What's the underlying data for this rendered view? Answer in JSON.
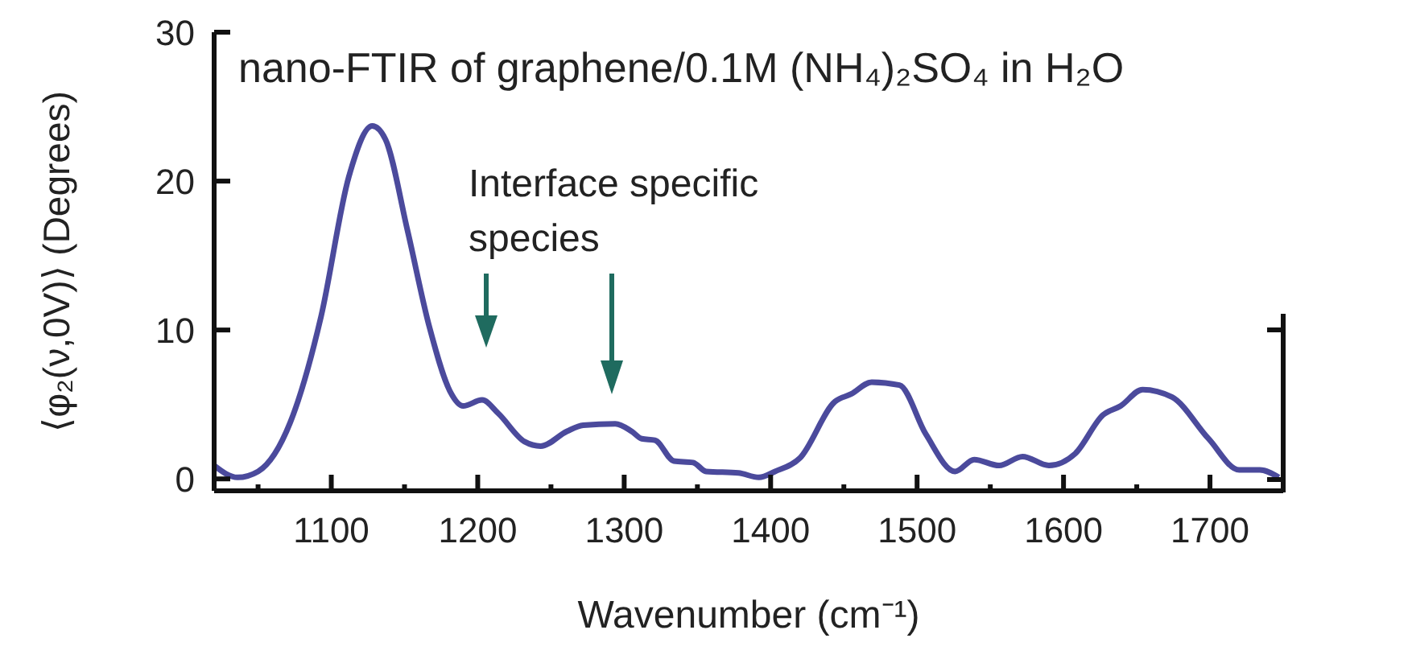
{
  "chart_data": {
    "type": "line",
    "title": "nano-FTIR of graphene/0.1M (NH₄)₂SO₄ in H₂O",
    "xlabel": "Wavenumber (cm⁻¹)",
    "ylabel": "⟨φ₂(ν,0V)⟩ (Degrees)",
    "annotations": [
      "Interface specific species"
    ],
    "xlim": [
      1020,
      1750
    ],
    "ylim": [
      -0.8,
      30
    ],
    "xticks": [
      {
        "value": 1050,
        "label": null
      },
      1100,
      {
        "value": 1150,
        "label": null
      },
      1200,
      {
        "value": 1250,
        "label": null
      },
      1300,
      {
        "value": 1350,
        "label": null
      },
      1400,
      {
        "value": 1450,
        "label": null
      },
      1500,
      {
        "value": 1550,
        "label": null
      },
      1600,
      {
        "value": 1650,
        "label": null
      },
      1700
    ],
    "yticks": [
      0,
      10,
      20,
      30
    ],
    "grid": false,
    "marker": "none",
    "line_style": "solid",
    "series": [
      {
        "color": "#4b4a9c",
        "x": [
          1020,
          1036,
          1050,
          1072,
          1093,
          1112,
          1128,
          1137,
          1152,
          1167,
          1181,
          1190,
          1203,
          1214,
          1232,
          1243,
          1261,
          1272,
          1294,
          1305,
          1312,
          1321,
          1334,
          1347,
          1356,
          1378,
          1392,
          1403,
          1420,
          1444,
          1455,
          1469,
          1488,
          1506,
          1526,
          1539,
          1556,
          1572,
          1590,
          1608,
          1627,
          1639,
          1654,
          1674,
          1699,
          1720,
          1734,
          1747
        ],
        "values": [
          0.9,
          0.1,
          0.5,
          3.8,
          10.9,
          20.3,
          23.7,
          22.8,
          16.7,
          10.2,
          5.9,
          4.9,
          5.3,
          4.4,
          2.5,
          2.2,
          3.2,
          3.6,
          3.7,
          3.2,
          2.7,
          2.6,
          1.2,
          1.1,
          0.5,
          0.4,
          0.1,
          0.5,
          1.4,
          5.2,
          5.7,
          6.5,
          6.3,
          3.0,
          0.5,
          1.3,
          0.9,
          1.5,
          0.9,
          1.7,
          4.3,
          4.9,
          6.0,
          5.5,
          2.7,
          0.6,
          0.6,
          0.1
        ]
      }
    ]
  }
}
